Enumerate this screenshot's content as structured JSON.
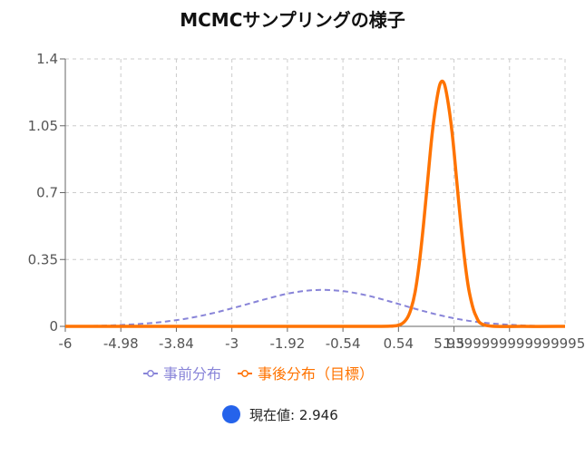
{
  "chart_data": {
    "type": "line",
    "title": "MCMCサンプリングの様子",
    "xlabel": "",
    "ylabel": "",
    "x_tick_labels": [
      "-6",
      "-4.98",
      "-3.84",
      "-3",
      "-1.92",
      "-0.54",
      "0.54",
      "1.5",
      "5.9399999999999995"
    ],
    "x_range": [
      -6,
      6
    ],
    "y_ticks": [
      0,
      0.35,
      0.7,
      1.05,
      1.4
    ],
    "y_tick_labels": [
      "0",
      "0.35",
      "0.7",
      "1.05",
      "1.4"
    ],
    "ylim": [
      0,
      1.4
    ],
    "grid": true,
    "legend_position": "bottom",
    "series": [
      {
        "name": "事前分布",
        "color": "#8884d8",
        "style": "dashed",
        "x": [
          -6,
          -5.4,
          -4.8,
          -4.2,
          -3.6,
          -3.0,
          -2.4,
          -1.8,
          -1.2,
          -0.6,
          0.0,
          0.6,
          1.2,
          1.8,
          2.4,
          3.0,
          3.6,
          4.2,
          4.8,
          5.4,
          6.0
        ],
        "values": [
          0.0,
          0.002,
          0.006,
          0.013,
          0.025,
          0.044,
          0.072,
          0.106,
          0.142,
          0.174,
          0.19,
          0.186,
          0.164,
          0.13,
          0.092,
          0.058,
          0.032,
          0.016,
          0.007,
          0.002,
          0.0
        ]
      },
      {
        "name": "事後分布（目標）",
        "color": "#ff7300",
        "style": "solid",
        "x": [
          -6,
          -3,
          0,
          1.2,
          1.8,
          2.05,
          2.2,
          2.3,
          2.4,
          2.5,
          2.6,
          2.7,
          2.8,
          2.9,
          3.0,
          3.1,
          3.2,
          3.3,
          3.4,
          3.5,
          3.6,
          3.7,
          3.85,
          4.1,
          5,
          6
        ],
        "values": [
          0.0,
          0.0,
          0.0,
          0.0,
          0.001,
          0.01,
          0.04,
          0.09,
          0.18,
          0.33,
          0.53,
          0.76,
          0.99,
          1.16,
          1.27,
          1.27,
          1.16,
          0.99,
          0.76,
          0.53,
          0.33,
          0.18,
          0.06,
          0.005,
          0.0,
          0.0
        ]
      }
    ]
  },
  "current": {
    "label": "現在値: 2.946",
    "color": "#2563eb"
  }
}
